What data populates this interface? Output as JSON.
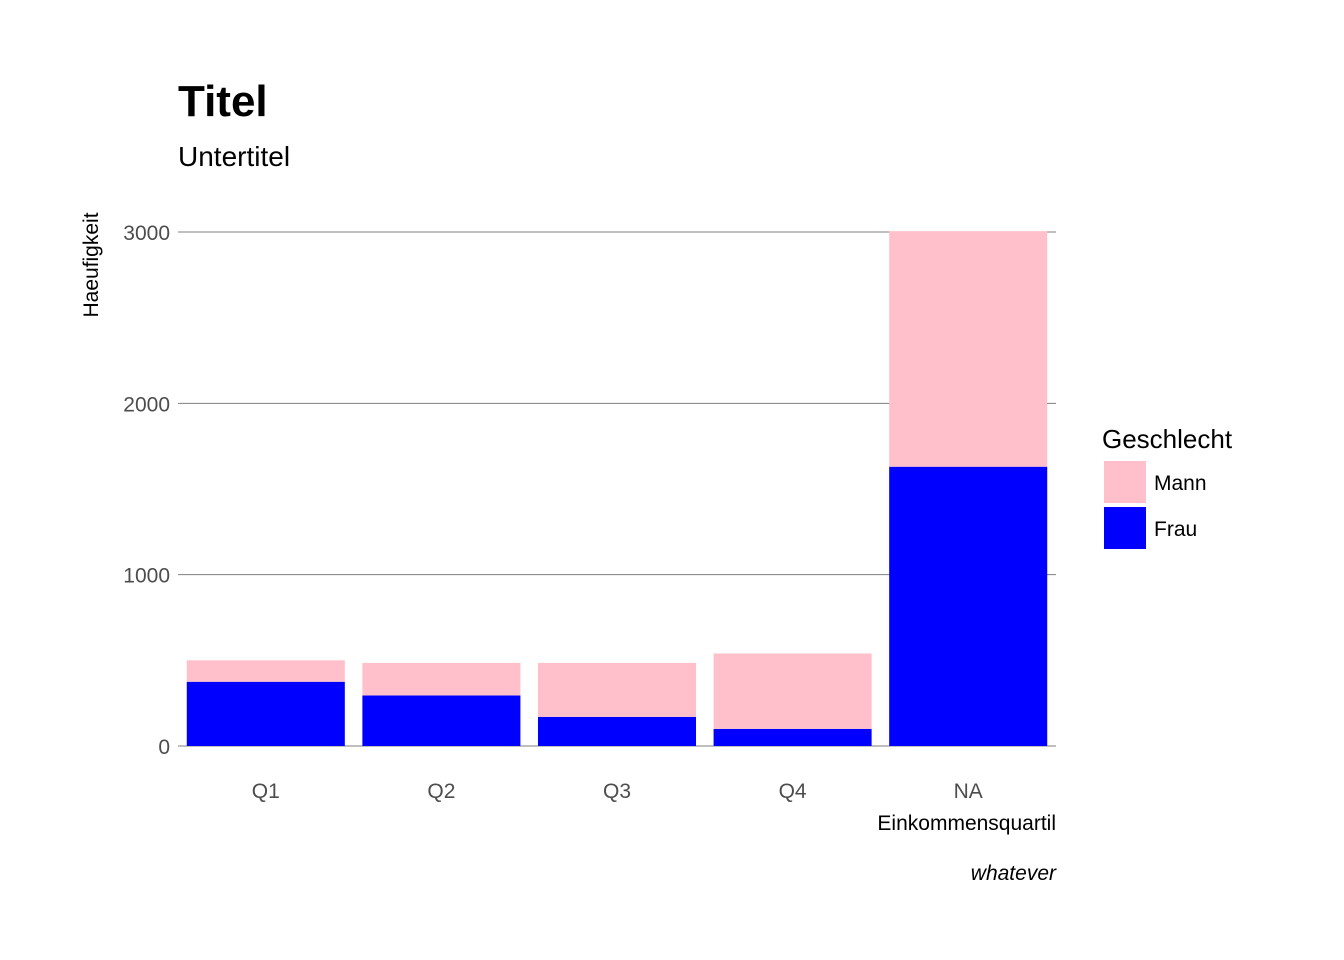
{
  "chart_data": {
    "type": "bar",
    "stacked": true,
    "title": "Titel",
    "subtitle": "Untertitel",
    "xlabel": "Einkommensquartil",
    "ylabel": "Haeufigkeit",
    "caption": "whatever",
    "categories": [
      "Q1",
      "Q2",
      "Q3",
      "Q4",
      "NA"
    ],
    "series": [
      {
        "name": "Frau",
        "color": "#0000ff",
        "values": [
          375,
          295,
          170,
          100,
          1630
        ]
      },
      {
        "name": "Mann",
        "color": "#ffc0cb",
        "values": [
          125,
          190,
          315,
          440,
          1375
        ]
      }
    ],
    "ylim": [
      0,
      3000
    ],
    "yticks": [
      0,
      1000,
      2000,
      3000
    ],
    "grid": true,
    "legend": {
      "title": "Geschlecht",
      "position": "right",
      "entries": [
        {
          "label": "Mann",
          "color": "#ffc0cb"
        },
        {
          "label": "Frau",
          "color": "#0000ff"
        }
      ]
    }
  }
}
